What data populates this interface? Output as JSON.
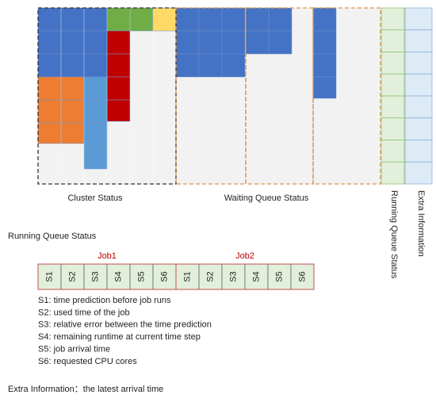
{
  "labels": {
    "cluster": "Cluster Status",
    "waiting": "Waiting Queue Status",
    "running_vertical": "Running Queue Status",
    "extra_vertical": "Extra Information",
    "running_title": "Running Queue Status"
  },
  "jobs": [
    {
      "label": "Job1",
      "slots": [
        "S1",
        "S2",
        "S3",
        "S4",
        "S5",
        "S6"
      ]
    },
    {
      "label": "Job2",
      "slots": [
        "S1",
        "S2",
        "S3",
        "S4",
        "S5",
        "S6"
      ]
    }
  ],
  "legend": [
    "S1: time prediction before job runs",
    "S2: used time of the job",
    "S3: relative error between the time prediction",
    "S4: remaining runtime at current time step",
    "S5: job arrival time",
    "S6: requested CPU cores"
  ],
  "extra_note": "Extra Information：the latest arrival time"
}
